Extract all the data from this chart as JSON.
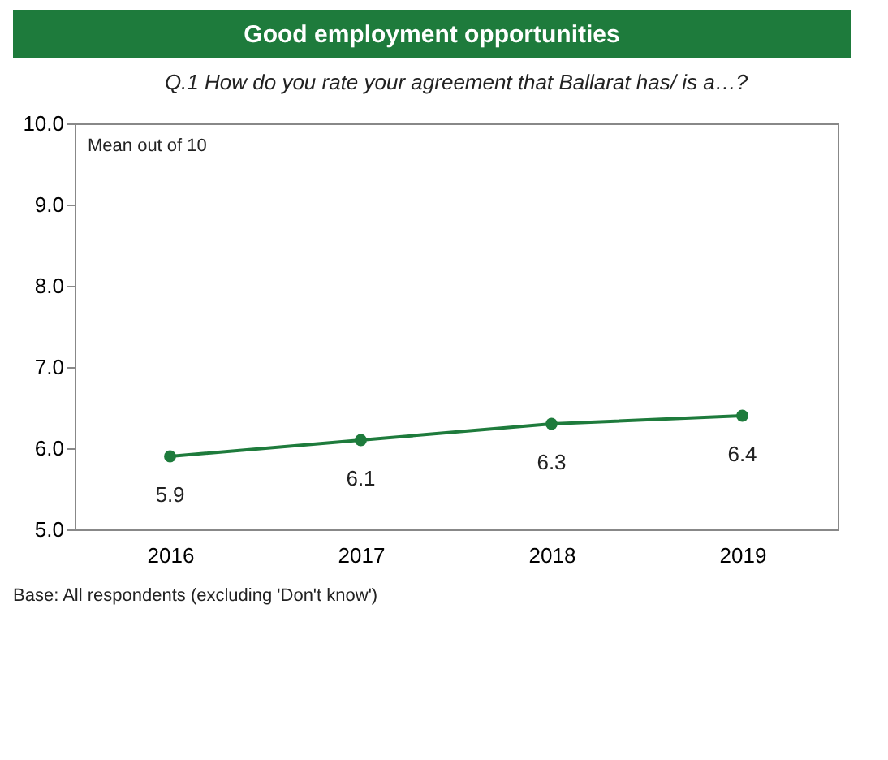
{
  "chart_data": {
    "type": "line",
    "title": "Good employment opportunities",
    "subtitle": "Q.1 How do you rate your agreement that Ballarat has/ is a…?",
    "categories": [
      "2016",
      "2017",
      "2018",
      "2019"
    ],
    "series": [
      {
        "color": "#1e7b3c",
        "values": [
          5.9,
          6.1,
          6.3,
          6.4
        ]
      }
    ],
    "ylim": [
      5,
      10
    ],
    "yticks": [
      {
        "value": 5,
        "label": "5.0"
      },
      {
        "value": 6,
        "label": "6.0"
      },
      {
        "value": 7,
        "label": "7.0"
      },
      {
        "value": 8,
        "label": "8.0"
      },
      {
        "value": 9,
        "label": "9.0"
      },
      {
        "value": 10,
        "label": "10.0"
      }
    ],
    "annotations": [
      "Mean out of 10",
      "Base: All respondents (excluding 'Don't know')"
    ],
    "data_labels": true,
    "marker": "circle",
    "line_style": "solid",
    "legend": false,
    "grid": false
  }
}
